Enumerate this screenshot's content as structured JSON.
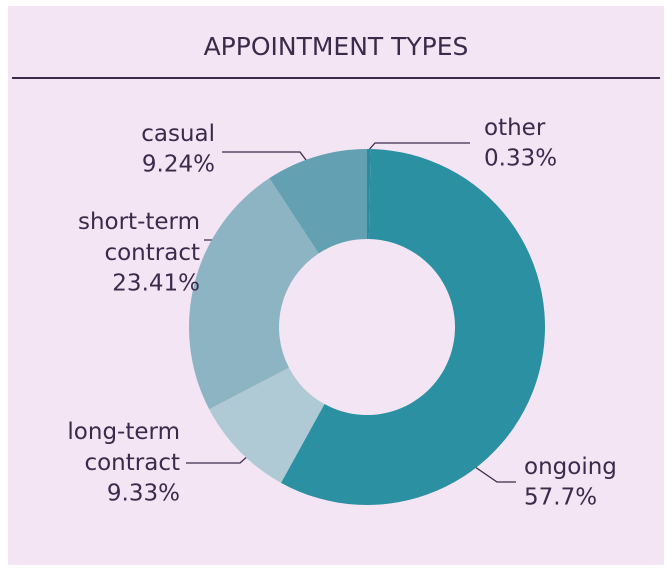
{
  "chart_data": {
    "type": "donut",
    "title": "APPOINTMENT TYPES",
    "categories": [
      "other",
      "ongoing",
      "long-term contract",
      "short-term contract",
      "casual"
    ],
    "values": [
      0.33,
      57.7,
      9.33,
      23.41,
      9.24
    ],
    "value_labels": [
      "0.33%",
      "57.7%",
      "9.33%",
      "23.41%",
      "9.24%"
    ],
    "colors": [
      "#2b8b9c",
      "#2a90a2",
      "#afcad4",
      "#8db4c2",
      "#62a0b2"
    ]
  }
}
